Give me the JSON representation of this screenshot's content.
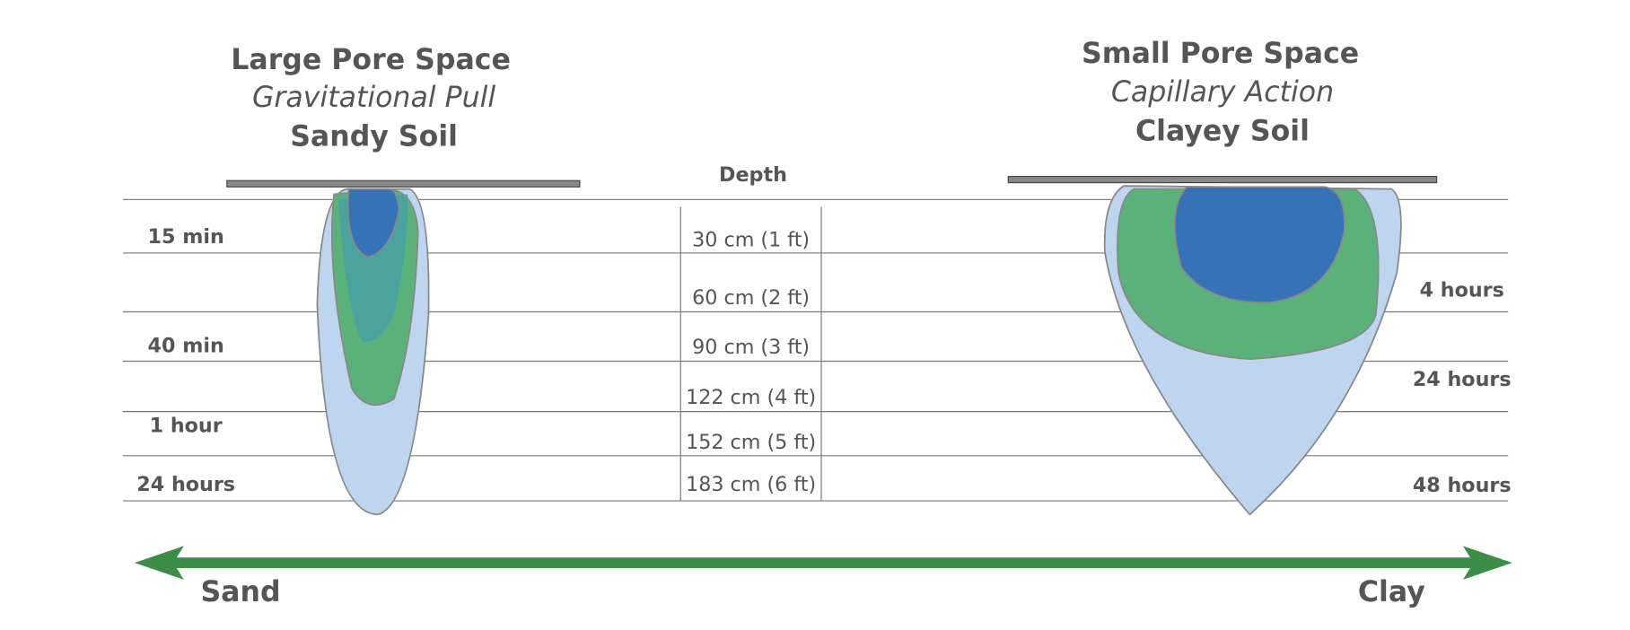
{
  "left": {
    "title": "Large Pore Space",
    "subtitle": "Gravitational Pull",
    "soil": "Sandy Soil",
    "times": [
      "15 min",
      "40 min",
      "1 hour",
      "24 hours"
    ]
  },
  "right": {
    "title": "Small Pore Space",
    "subtitle": "Capillary Action",
    "soil": "Clayey Soil",
    "times": [
      "4 hours",
      "24 hours",
      "48 hours"
    ]
  },
  "depth": {
    "title": "Depth",
    "levels": [
      "30 cm (1 ft)",
      "60 cm (2 ft)",
      "90 cm (3 ft)",
      "122 cm (4 ft)",
      "152 cm (5 ft)",
      "183 cm (6 ft)"
    ]
  },
  "scale": {
    "left": "Sand",
    "right": "Clay"
  }
}
